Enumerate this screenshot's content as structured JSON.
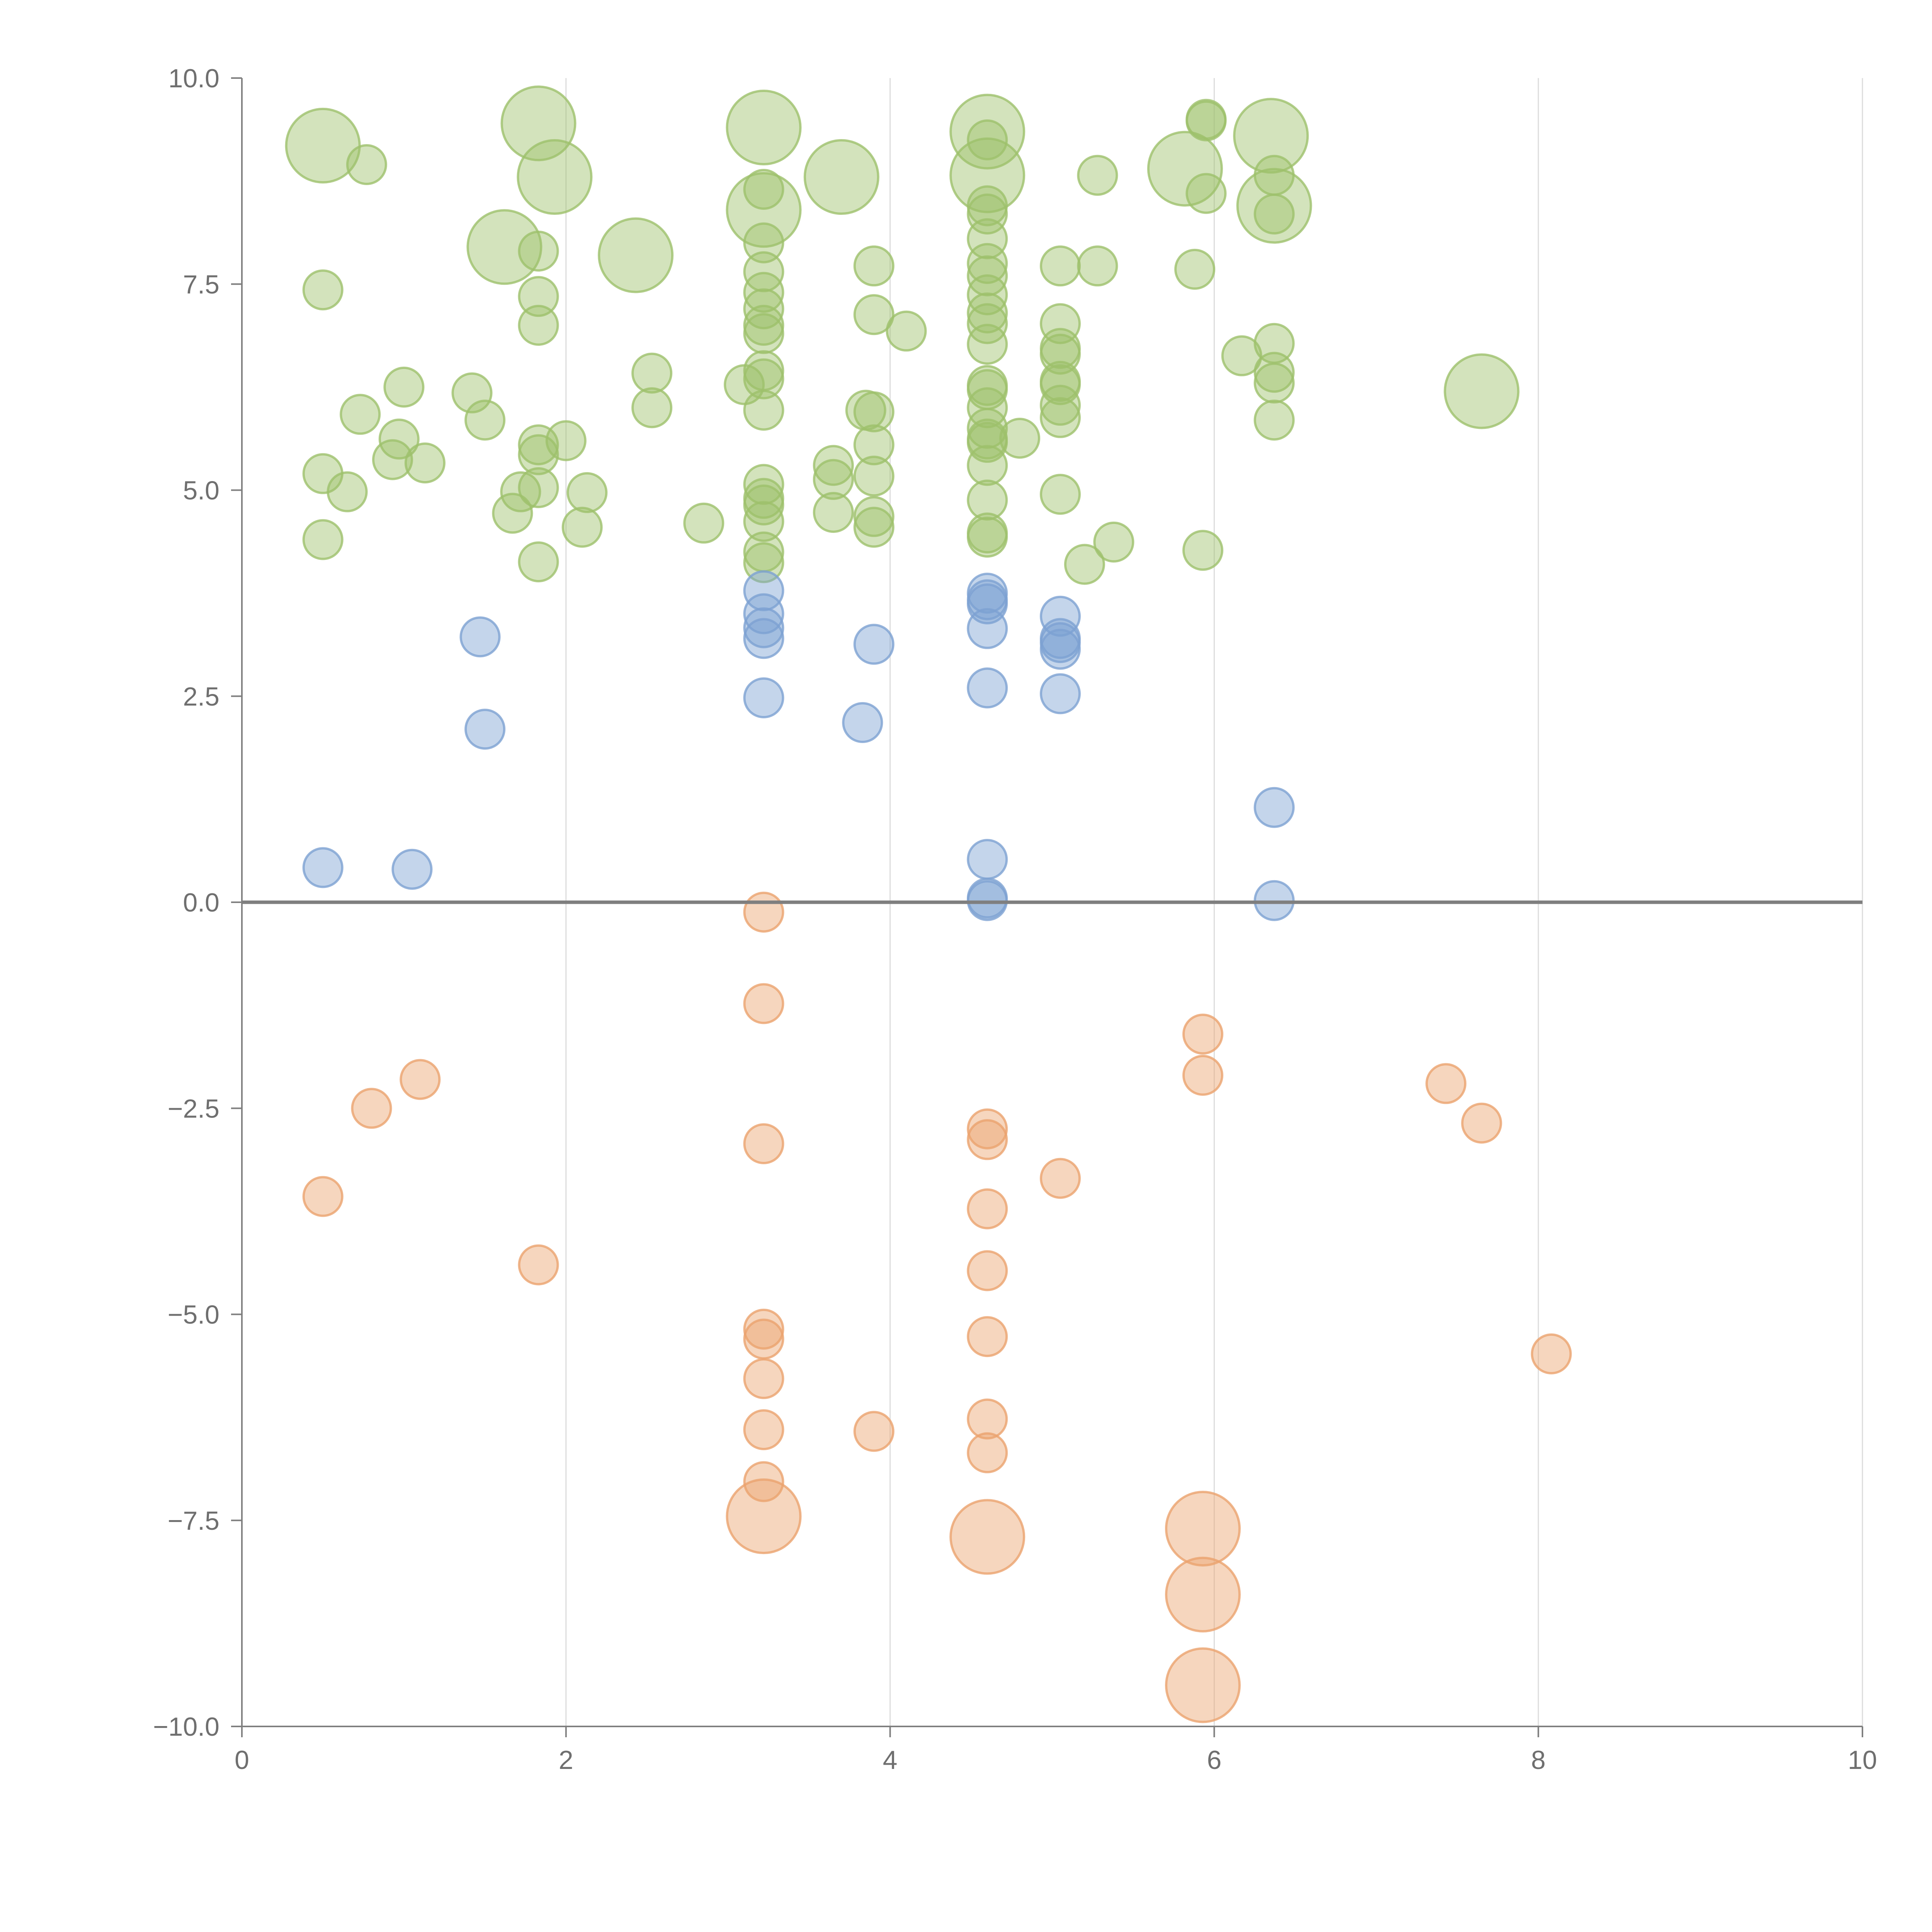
{
  "chart_data": {
    "type": "scatter",
    "title": "",
    "xlabel": "",
    "ylabel": "",
    "xlim": [
      0,
      10
    ],
    "ylim": [
      -10,
      10
    ],
    "x_ticks": [
      0,
      2,
      4,
      6,
      8,
      10
    ],
    "y_ticks": [
      -10,
      -7.5,
      -5,
      -2.5,
      0,
      2.5,
      5,
      7.5,
      10
    ],
    "x_tick_labels": [
      "0",
      "2",
      "4",
      "6",
      "8",
      "10"
    ],
    "y_tick_labels": [
      "−10.0",
      "−7.5",
      "−5.0",
      "−2.5",
      "0.0",
      "2.5",
      "5.0",
      "7.5",
      "10.0"
    ],
    "grid": "vertical",
    "reference_line_y": 0,
    "size_encoding": "bubble area; sizes 1 (small) to 3 (large)",
    "series": [
      {
        "name": "green",
        "color": "#9dc16b",
        "points": [
          [
            0.5,
            9.18,
            3
          ],
          [
            0.77,
            8.95,
            1
          ],
          [
            1.83,
            9.45,
            3
          ],
          [
            1.93,
            8.8,
            3
          ],
          [
            3.22,
            9.4,
            3
          ],
          [
            3.7,
            8.8,
            3
          ],
          [
            4.6,
            9.35,
            3
          ],
          [
            4.6,
            8.82,
            3
          ],
          [
            5.82,
            8.9,
            3
          ],
          [
            5.95,
            9.5,
            1
          ],
          [
            6.35,
            9.3,
            3
          ],
          [
            6.37,
            8.45,
            3
          ],
          [
            3.22,
            8.4,
            3
          ],
          [
            1.62,
            7.95,
            3
          ],
          [
            2.43,
            7.85,
            3
          ],
          [
            7.65,
            6.2,
            3
          ],
          [
            5.95,
            9.48,
            1
          ],
          [
            6.37,
            8.82,
            1
          ],
          [
            6.37,
            8.35,
            1
          ],
          [
            5.28,
            8.82,
            1
          ],
          [
            5.95,
            8.6,
            1
          ],
          [
            0.5,
            7.43,
            1
          ],
          [
            1.83,
            7.9,
            1
          ],
          [
            1.83,
            7.35,
            1
          ],
          [
            1.83,
            7.0,
            1
          ],
          [
            3.22,
            8.0,
            1
          ],
          [
            3.22,
            7.65,
            1
          ],
          [
            3.22,
            7.4,
            1
          ],
          [
            3.22,
            7.2,
            1
          ],
          [
            3.22,
            7.0,
            1
          ],
          [
            3.22,
            6.9,
            1
          ],
          [
            3.22,
            6.45,
            1
          ],
          [
            3.22,
            6.35,
            1
          ],
          [
            3.1,
            6.28,
            1
          ],
          [
            3.22,
            5.97,
            1
          ],
          [
            3.22,
            8.65,
            1
          ],
          [
            3.9,
            7.72,
            1
          ],
          [
            3.9,
            7.13,
            1
          ],
          [
            4.1,
            6.93,
            1
          ],
          [
            4.6,
            9.25,
            1
          ],
          [
            4.6,
            8.45,
            1
          ],
          [
            4.6,
            8.35,
            1
          ],
          [
            4.6,
            8.05,
            1
          ],
          [
            4.6,
            7.75,
            1
          ],
          [
            4.6,
            7.6,
            1
          ],
          [
            4.6,
            7.37,
            1
          ],
          [
            4.6,
            7.15,
            1
          ],
          [
            4.6,
            7.02,
            1
          ],
          [
            4.6,
            6.77,
            1
          ],
          [
            4.6,
            6.27,
            1
          ],
          [
            4.6,
            6.22,
            1
          ],
          [
            4.6,
            6.0,
            1
          ],
          [
            4.6,
            5.75,
            1
          ],
          [
            4.6,
            5.62,
            1
          ],
          [
            4.6,
            5.58,
            1
          ],
          [
            4.6,
            5.3,
            1
          ],
          [
            4.6,
            4.88,
            1
          ],
          [
            4.6,
            4.48,
            1
          ],
          [
            4.6,
            4.43,
            1
          ],
          [
            4.8,
            5.63,
            1
          ],
          [
            5.05,
            7.72,
            1
          ],
          [
            5.05,
            7.02,
            1
          ],
          [
            5.05,
            6.72,
            1
          ],
          [
            5.05,
            6.65,
            1
          ],
          [
            5.05,
            6.32,
            1
          ],
          [
            5.05,
            6.28,
            1
          ],
          [
            5.05,
            6.03,
            1
          ],
          [
            5.05,
            5.88,
            1
          ],
          [
            5.05,
            4.95,
            1
          ],
          [
            5.28,
            7.72,
            1
          ],
          [
            5.88,
            7.68,
            1
          ],
          [
            5.93,
            4.27,
            1
          ],
          [
            5.2,
            4.1,
            1
          ],
          [
            5.38,
            4.37,
            1
          ],
          [
            6.17,
            6.63,
            1
          ],
          [
            6.37,
            6.78,
            1
          ],
          [
            6.37,
            6.43,
            1
          ],
          [
            6.37,
            6.3,
            1
          ],
          [
            6.37,
            5.85,
            1
          ],
          [
            0.73,
            5.92,
            1
          ],
          [
            1.0,
            6.25,
            1
          ],
          [
            0.97,
            5.62,
            1
          ],
          [
            0.93,
            5.37,
            1
          ],
          [
            1.13,
            5.33,
            1
          ],
          [
            0.5,
            5.2,
            1
          ],
          [
            0.65,
            4.98,
            1
          ],
          [
            0.5,
            4.4,
            1
          ],
          [
            1.42,
            6.18,
            1
          ],
          [
            1.5,
            5.85,
            1
          ],
          [
            1.83,
            5.55,
            1
          ],
          [
            1.83,
            5.43,
            1
          ],
          [
            1.83,
            5.03,
            1
          ],
          [
            1.72,
            4.98,
            1
          ],
          [
            1.67,
            4.72,
            1
          ],
          [
            1.83,
            4.13,
            1
          ],
          [
            2.0,
            5.6,
            1
          ],
          [
            2.13,
            4.97,
            1
          ],
          [
            2.1,
            4.55,
            1
          ],
          [
            2.53,
            6.42,
            1
          ],
          [
            2.53,
            6.0,
            1
          ],
          [
            2.85,
            4.6,
            1
          ],
          [
            3.22,
            5.07,
            1
          ],
          [
            3.22,
            4.9,
            1
          ],
          [
            3.22,
            4.82,
            1
          ],
          [
            3.22,
            4.62,
            1
          ],
          [
            3.22,
            4.25,
            1
          ],
          [
            3.22,
            4.12,
            1
          ],
          [
            3.65,
            5.3,
            1
          ],
          [
            3.65,
            5.13,
            1
          ],
          [
            3.65,
            4.73,
            1
          ],
          [
            3.9,
            5.95,
            1
          ],
          [
            3.9,
            5.55,
            1
          ],
          [
            3.9,
            5.17,
            1
          ],
          [
            3.9,
            4.68,
            1
          ],
          [
            3.9,
            4.55,
            1
          ],
          [
            3.85,
            5.97,
            1
          ]
        ]
      },
      {
        "name": "blue",
        "color": "#7da1d2",
        "points": [
          [
            1.47,
            3.22,
            1
          ],
          [
            1.5,
            2.1,
            1
          ],
          [
            0.5,
            0.42,
            1
          ],
          [
            1.05,
            0.4,
            1
          ],
          [
            3.22,
            3.78,
            1
          ],
          [
            3.22,
            3.5,
            1
          ],
          [
            3.22,
            3.33,
            1
          ],
          [
            3.22,
            3.2,
            1
          ],
          [
            3.22,
            2.48,
            1
          ],
          [
            3.9,
            3.13,
            1
          ],
          [
            3.83,
            2.18,
            1
          ],
          [
            4.6,
            3.75,
            1
          ],
          [
            4.6,
            3.67,
            1
          ],
          [
            4.6,
            3.62,
            1
          ],
          [
            4.6,
            3.32,
            1
          ],
          [
            4.6,
            2.6,
            1
          ],
          [
            4.6,
            0.52,
            1
          ],
          [
            4.6,
            0.05,
            1
          ],
          [
            4.6,
            0.02,
            1
          ],
          [
            5.05,
            3.47,
            1
          ],
          [
            5.05,
            3.2,
            1
          ],
          [
            5.05,
            3.15,
            1
          ],
          [
            5.05,
            3.07,
            1
          ],
          [
            5.05,
            2.53,
            1
          ],
          [
            6.37,
            1.15,
            1
          ],
          [
            6.37,
            0.02,
            1
          ]
        ]
      },
      {
        "name": "orange",
        "color": "#eba36e",
        "points": [
          [
            3.22,
            -0.12,
            1
          ],
          [
            3.22,
            -1.23,
            1
          ],
          [
            3.22,
            -2.93,
            1
          ],
          [
            3.22,
            -5.18,
            1
          ],
          [
            3.22,
            -5.3,
            1
          ],
          [
            3.22,
            -5.78,
            1
          ],
          [
            3.22,
            -6.4,
            1
          ],
          [
            3.22,
            -7.03,
            1
          ],
          [
            3.22,
            -7.45,
            3
          ],
          [
            1.1,
            -2.15,
            1
          ],
          [
            0.8,
            -2.5,
            1
          ],
          [
            0.5,
            -3.57,
            1
          ],
          [
            1.83,
            -4.4,
            1
          ],
          [
            3.9,
            -6.42,
            1
          ],
          [
            4.6,
            -2.75,
            1
          ],
          [
            4.6,
            -2.88,
            1
          ],
          [
            4.6,
            -3.72,
            1
          ],
          [
            4.6,
            -4.47,
            1
          ],
          [
            4.6,
            -5.27,
            1
          ],
          [
            4.6,
            -6.27,
            1
          ],
          [
            4.6,
            -6.68,
            1
          ],
          [
            4.6,
            -7.7,
            3
          ],
          [
            5.05,
            -3.35,
            1
          ],
          [
            5.93,
            -1.6,
            1
          ],
          [
            5.93,
            -2.1,
            1
          ],
          [
            5.93,
            -7.6,
            3
          ],
          [
            5.93,
            -8.4,
            3
          ],
          [
            5.93,
            -9.5,
            3
          ],
          [
            7.43,
            -2.2,
            1
          ],
          [
            7.65,
            -2.68,
            1
          ],
          [
            8.08,
            -5.48,
            1
          ]
        ]
      }
    ]
  }
}
